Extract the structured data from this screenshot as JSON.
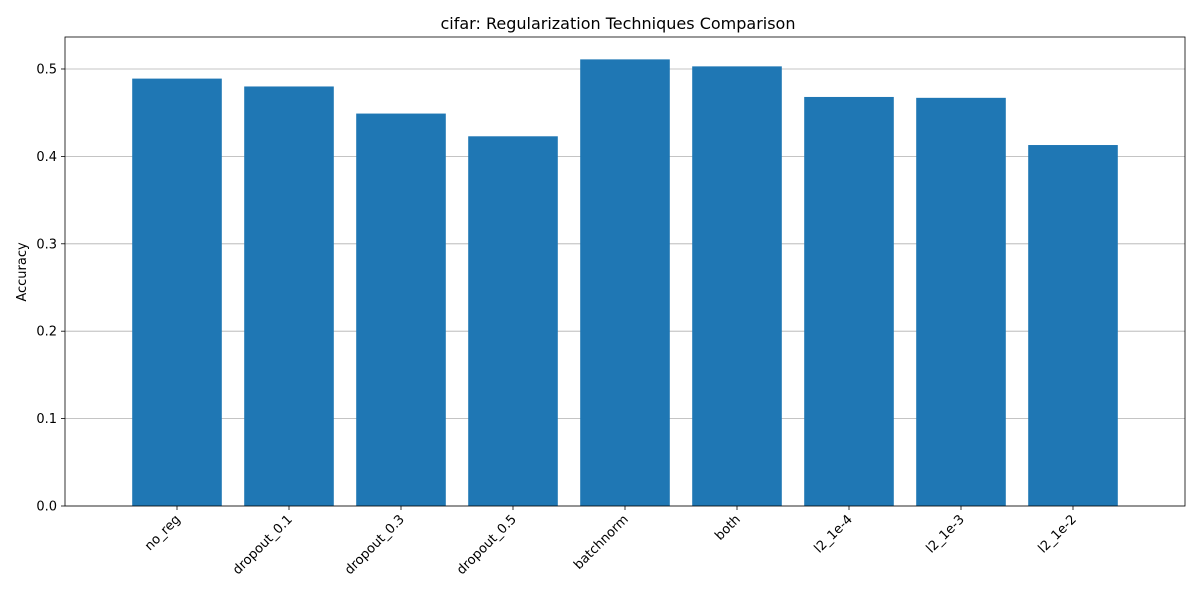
{
  "chart_data": {
    "type": "bar",
    "title": "cifar: Regularization Techniques Comparison",
    "xlabel": "",
    "ylabel": "Accuracy",
    "categories": [
      "no_reg",
      "dropout_0.1",
      "dropout_0.3",
      "dropout_0.5",
      "batchnorm",
      "both",
      "l2_1e-4",
      "l2_1e-3",
      "l2_1e-2"
    ],
    "values": [
      0.489,
      0.48,
      0.449,
      0.423,
      0.511,
      0.503,
      0.468,
      0.467,
      0.413
    ],
    "ylim": [
      0,
      0.5366
    ],
    "yticks": [
      0.0,
      0.1,
      0.2,
      0.3,
      0.4,
      0.5
    ],
    "ytick_labels": [
      "0.0",
      "0.1",
      "0.2",
      "0.3",
      "0.4",
      "0.5"
    ],
    "grid": "y-axis major",
    "bar_color": "#1f77b4",
    "grid_color": "#b0b0b0",
    "legend": "none"
  }
}
